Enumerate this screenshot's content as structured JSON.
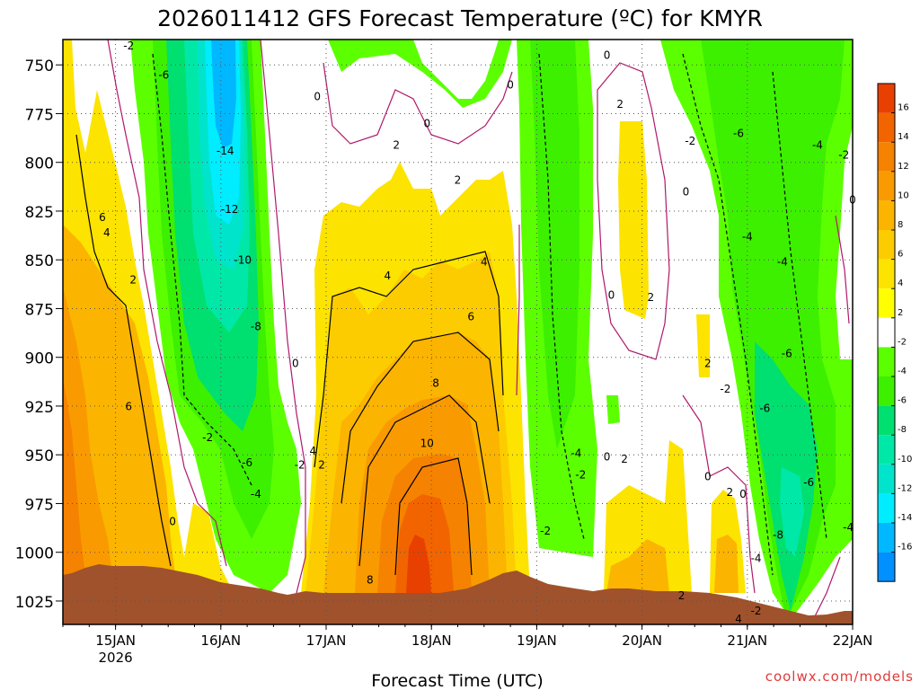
{
  "chart_data": {
    "type": "heatmap",
    "title": "2026011412 GFS Forecast Temperature (ºC) for KMYR",
    "xlabel": "Forecast Time (UTC)",
    "ylabel": "",
    "credit": "coolwx.com/models",
    "x_ticks": [
      {
        "label": "15JAN",
        "sub": "2026",
        "t": 12
      },
      {
        "label": "16JAN",
        "sub": "",
        "t": 36
      },
      {
        "label": "17JAN",
        "sub": "",
        "t": 60
      },
      {
        "label": "18JAN",
        "sub": "",
        "t": 84
      },
      {
        "label": "19JAN",
        "sub": "",
        "t": 108
      },
      {
        "label": "20JAN",
        "sub": "",
        "t": 132
      },
      {
        "label": "21JAN",
        "sub": "",
        "t": 156
      },
      {
        "label": "22JAN",
        "sub": "",
        "t": 180
      }
    ],
    "xlim": [
      0,
      180
    ],
    "y_ticks": [
      750,
      775,
      800,
      825,
      850,
      875,
      900,
      925,
      950,
      975,
      1000,
      1025
    ],
    "ylim": [
      737,
      1037
    ],
    "colorbar": {
      "levels": [
        16,
        14,
        12,
        10,
        8,
        6,
        4,
        2,
        -2,
        -4,
        -6,
        -8,
        -10,
        -12,
        -14,
        -16
      ],
      "colors": [
        "#e84000",
        "#f26400",
        "#f58200",
        "#f99b00",
        "#fbb400",
        "#fccc00",
        "#fde300",
        "#ffff00",
        "#ffffff",
        "#5cff00",
        "#3df000",
        "#00e070",
        "#00e8a8",
        "#00e4cc",
        "#00ecff",
        "#00b8ff",
        "#0090ff"
      ]
    },
    "contour_labels": [
      {
        "v": "-2",
        "t": 15,
        "p": 742
      },
      {
        "v": "-6",
        "t": 23,
        "p": 757
      },
      {
        "v": "0",
        "t": 58,
        "p": 768
      },
      {
        "v": "0",
        "t": 83,
        "p": 782
      },
      {
        "v": "0",
        "t": 102,
        "p": 762
      },
      {
        "v": "0",
        "t": 124,
        "p": 747
      },
      {
        "v": "2",
        "t": 127,
        "p": 772
      },
      {
        "v": "-14",
        "t": 37,
        "p": 796
      },
      {
        "v": "2",
        "t": 76,
        "p": 793
      },
      {
        "v": "2",
        "t": 90,
        "p": 811
      },
      {
        "v": "-12",
        "t": 38,
        "p": 826
      },
      {
        "v": "6",
        "t": 9,
        "p": 830
      },
      {
        "v": "4",
        "t": 10,
        "p": 838
      },
      {
        "v": "-10",
        "t": 41,
        "p": 852
      },
      {
        "v": "2",
        "t": 16,
        "p": 862
      },
      {
        "v": "4",
        "t": 74,
        "p": 860
      },
      {
        "v": "4",
        "t": 96,
        "p": 853
      },
      {
        "v": "0",
        "t": 125,
        "p": 870
      },
      {
        "v": "2",
        "t": 134,
        "p": 871
      },
      {
        "v": "6",
        "t": 93,
        "p": 881
      },
      {
        "v": "-8",
        "t": 44,
        "p": 886
      },
      {
        "v": "0",
        "t": 53,
        "p": 905
      },
      {
        "v": "2",
        "t": 147,
        "p": 905
      },
      {
        "v": "8",
        "t": 85,
        "p": 915
      },
      {
        "v": "6",
        "t": 15,
        "p": 927
      },
      {
        "v": "-2",
        "t": 33,
        "p": 943
      },
      {
        "v": "-6",
        "t": 42,
        "p": 956
      },
      {
        "v": "-2",
        "t": 54,
        "p": 957
      },
      {
        "v": "2",
        "t": 59,
        "p": 957
      },
      {
        "v": "-2",
        "t": 118,
        "p": 962
      },
      {
        "v": "-2",
        "t": 151,
        "p": 918
      },
      {
        "v": "-6",
        "t": 160,
        "p": 928
      },
      {
        "v": "-6",
        "t": 165,
        "p": 900
      },
      {
        "v": "0",
        "t": 147,
        "p": 963
      },
      {
        "v": "4",
        "t": 57,
        "p": 950
      },
      {
        "v": "10",
        "t": 83,
        "p": 946
      },
      {
        "v": "-4",
        "t": 117,
        "p": 951
      },
      {
        "v": "0",
        "t": 124,
        "p": 953
      },
      {
        "v": "2",
        "t": 128,
        "p": 954
      },
      {
        "v": "-4",
        "t": 44,
        "p": 972
      },
      {
        "v": "0",
        "t": 25,
        "p": 986
      },
      {
        "v": "-2",
        "t": 110,
        "p": 991
      },
      {
        "v": "2",
        "t": 152,
        "p": 971
      },
      {
        "v": "0",
        "t": 155,
        "p": 972
      },
      {
        "v": "-6",
        "t": 170,
        "p": 966
      },
      {
        "v": "-8",
        "t": 163,
        "p": 993
      },
      {
        "v": "-4",
        "t": 179,
        "p": 989
      },
      {
        "v": "-4",
        "t": 158,
        "p": 1005
      },
      {
        "v": "8",
        "t": 70,
        "p": 1016
      },
      {
        "v": "2",
        "t": 141,
        "p": 1024
      },
      {
        "v": "-2",
        "t": 158,
        "p": 1032
      },
      {
        "v": "4",
        "t": 154,
        "p": 1036
      },
      {
        "v": "-4",
        "t": 156,
        "p": 840
      },
      {
        "v": "-6",
        "t": 154,
        "p": 787
      },
      {
        "v": "-2",
        "t": 143,
        "p": 791
      },
      {
        "v": "-4",
        "t": 172,
        "p": 793
      },
      {
        "v": "-2",
        "t": 178,
        "p": 798
      },
      {
        "v": "0",
        "t": 142,
        "p": 817
      },
      {
        "v": "0",
        "t": 180,
        "p": 821
      },
      {
        "v": "-4",
        "t": 164,
        "p": 853
      }
    ]
  }
}
